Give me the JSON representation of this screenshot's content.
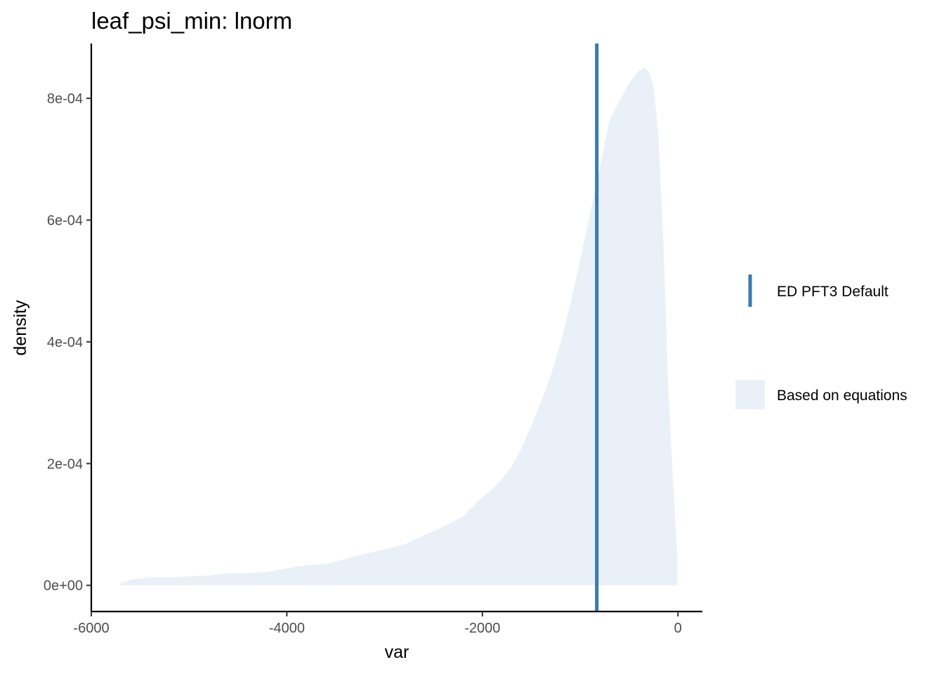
{
  "chart_data": {
    "type": "area",
    "title": "leaf_psi_min: lnorm",
    "xlabel": "var",
    "ylabel": "density",
    "xlim": [
      -6000,
      250
    ],
    "ylim": [
      -4.3e-05,
      0.00089
    ],
    "x_ticks": [
      -6000,
      -4000,
      -2000,
      0
    ],
    "x_tick_labels": [
      "-6000",
      "-4000",
      "-2000",
      "0"
    ],
    "y_ticks": [
      0,
      0.0002,
      0.0004,
      0.0006,
      0.0008
    ],
    "y_tick_labels": [
      "0e+00",
      "2e-04",
      "4e-04",
      "6e-04",
      "8e-04"
    ],
    "grid": false,
    "legend_position": "right",
    "series": [
      {
        "name": "Based on equations",
        "kind": "density-area",
        "color": "#eaf0f7",
        "x": [
          -5700,
          -5600,
          -5400,
          -5200,
          -5000,
          -4800,
          -4600,
          -4400,
          -4200,
          -4000,
          -3800,
          -3600,
          -3400,
          -3200,
          -3000,
          -2800,
          -2600,
          -2400,
          -2200,
          -2000,
          -1900,
          -1800,
          -1700,
          -1600,
          -1500,
          -1400,
          -1300,
          -1200,
          -1100,
          -1000,
          -900,
          -800,
          -700,
          -600,
          -500,
          -400,
          -350,
          -300,
          -250,
          -200,
          -150,
          -100,
          -50,
          -5,
          -5
        ],
        "y": [
          4e-06,
          9e-06,
          1.3e-05,
          1.3e-05,
          1.5e-05,
          1.6e-05,
          2e-05,
          2e-05,
          2.2e-05,
          2.8e-05,
          3.3e-05,
          3.5e-05,
          4.3e-05,
          5.2e-05,
          5.9e-05,
          6.7e-05,
          8.2e-05,
          9.6e-05,
          0.000113,
          0.000145,
          0.000158,
          0.000175,
          0.000195,
          0.000225,
          0.000262,
          0.000301,
          0.000345,
          0.000398,
          0.000462,
          0.000535,
          0.000608,
          0.000685,
          0.000765,
          0.000795,
          0.000825,
          0.000845,
          0.00085,
          0.000845,
          0.00082,
          0.00074,
          0.00057,
          0.00033,
          0.00017,
          4.5e-05,
          0
        ]
      },
      {
        "name": "ED PFT3 Default",
        "kind": "vline",
        "color": "#3a7ab0",
        "x": -830
      }
    ]
  }
}
